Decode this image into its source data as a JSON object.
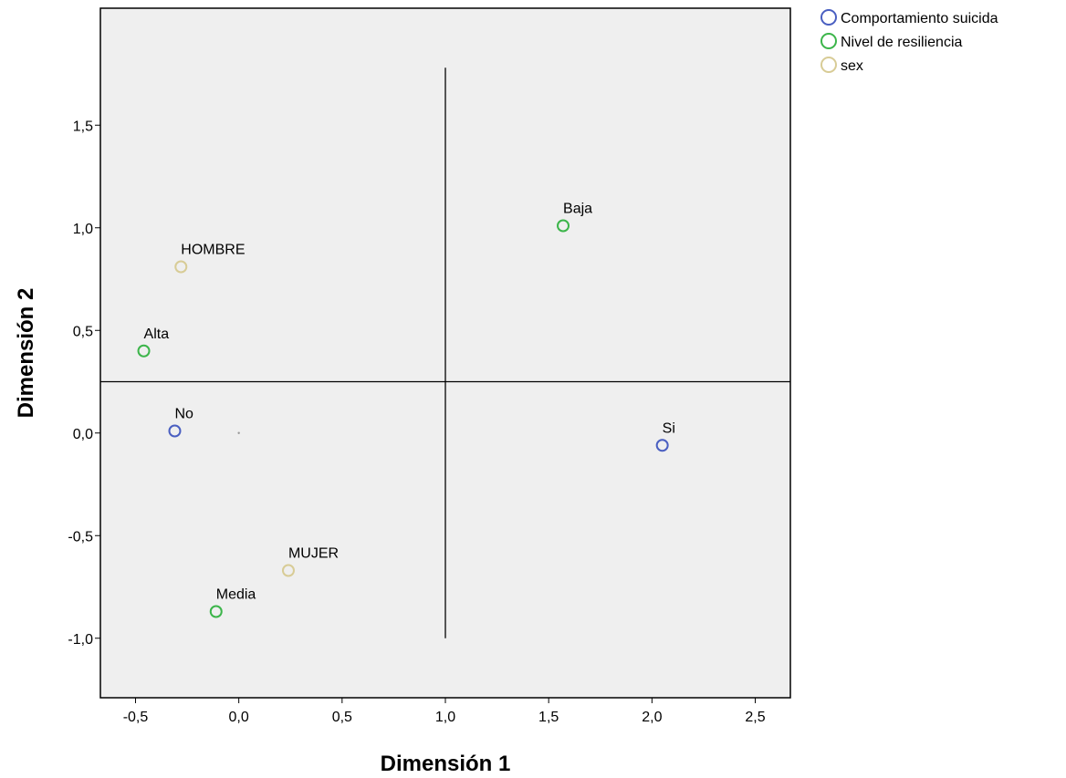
{
  "chart_data": {
    "type": "scatter",
    "title": "",
    "xlabel": "Dimensión 1",
    "ylabel": "Dimensión 2",
    "xlim": [
      -0.67,
      2.67
    ],
    "ylim": [
      -1.29,
      2.07
    ],
    "xticks": [
      -0.5,
      0.0,
      0.5,
      1.0,
      1.5,
      2.0,
      2.5
    ],
    "xtick_labels": [
      "-0,5",
      "0,0",
      "0,5",
      "1,0",
      "1,5",
      "2,0",
      "2,5"
    ],
    "yticks": [
      -1.0,
      -0.5,
      0.0,
      0.5,
      1.0,
      1.5
    ],
    "ytick_labels": [
      "-1,0",
      "-0,5",
      "0,0",
      "0,5",
      "1,0",
      "1,5"
    ],
    "grid": false,
    "legend_position": "top-right-outside",
    "reference_lines": {
      "vertical_x": 1.0,
      "vertical_y_range": [
        -1.0,
        1.78
      ],
      "horizontal_y": 0.25
    },
    "origin_marker": {
      "x": 0.0,
      "y": 0.0
    },
    "series": [
      {
        "name": "Comportamiento suicida",
        "color": "#4a5fc1",
        "points": [
          {
            "label": "No",
            "x": -0.31,
            "y": 0.01
          },
          {
            "label": "Si",
            "x": 2.05,
            "y": -0.06
          }
        ]
      },
      {
        "name": "Nivel de resiliencia",
        "color": "#3cb54a",
        "points": [
          {
            "label": "Baja",
            "x": 1.57,
            "y": 1.01
          },
          {
            "label": "Alta",
            "x": -0.46,
            "y": 0.4
          },
          {
            "label": "Media",
            "x": -0.11,
            "y": -0.87
          }
        ]
      },
      {
        "name": "sex",
        "color": "#d8cc96",
        "points": [
          {
            "label": "HOMBRE",
            "x": -0.28,
            "y": 0.81
          },
          {
            "label": "MUJER",
            "x": 0.24,
            "y": -0.67
          }
        ]
      }
    ]
  }
}
